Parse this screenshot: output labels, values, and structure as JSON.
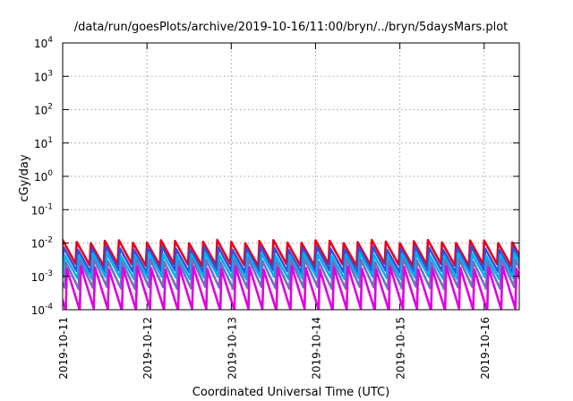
{
  "chart_data": {
    "type": "line",
    "title": "/data/run/goesPlots/archive/2019-10-16/11:00/bryn/../bryn/5daysMars.plot",
    "xlabel": "Coordinated Universal Time (UTC)",
    "ylabel": "cGy/day",
    "yscale": "log",
    "ylim": [
      0.0001,
      10000
    ],
    "xlim": [
      "2019-10-11T00:00",
      "2019-10-16T10:00"
    ],
    "x_ticks": [
      "2019-10-11",
      "2019-10-12",
      "2019-10-13",
      "2019-10-14",
      "2019-10-15",
      "2019-10-16"
    ],
    "y_ticks": [
      {
        "base": "10",
        "exp": "-4",
        "value": 0.0001
      },
      {
        "base": "10",
        "exp": "-3",
        "value": 0.001
      },
      {
        "base": "10",
        "exp": "-2",
        "value": 0.01
      },
      {
        "base": "10",
        "exp": "-1",
        "value": 0.1
      },
      {
        "base": "10",
        "exp": "0",
        "value": 1
      },
      {
        "base": "10",
        "exp": "1",
        "value": 10
      },
      {
        "base": "10",
        "exp": "2",
        "value": 100
      },
      {
        "base": "10",
        "exp": "3",
        "value": 1000
      },
      {
        "base": "10",
        "exp": "4",
        "value": 10000
      }
    ],
    "grid": true,
    "legend": "none",
    "sawtooth_period_hours": 4,
    "series": [
      {
        "color": "#e8001c",
        "peak": 0.011,
        "trough": 0.0022,
        "phase_hours": 0.0
      },
      {
        "color": "#3050e0",
        "peak": 0.007,
        "trough": 0.0014,
        "phase_hours": 0.3
      },
      {
        "color": "#00b0f0",
        "peak": 0.0045,
        "trough": 0.0009,
        "phase_hours": 0.6
      },
      {
        "color": "#7070c0",
        "peak": 0.003,
        "trough": 0.00045,
        "phase_hours": 0.9
      },
      {
        "color": "#e000e0",
        "peak": 0.0018,
        "trough": 0.0001,
        "phase_hours": 1.2
      }
    ]
  }
}
